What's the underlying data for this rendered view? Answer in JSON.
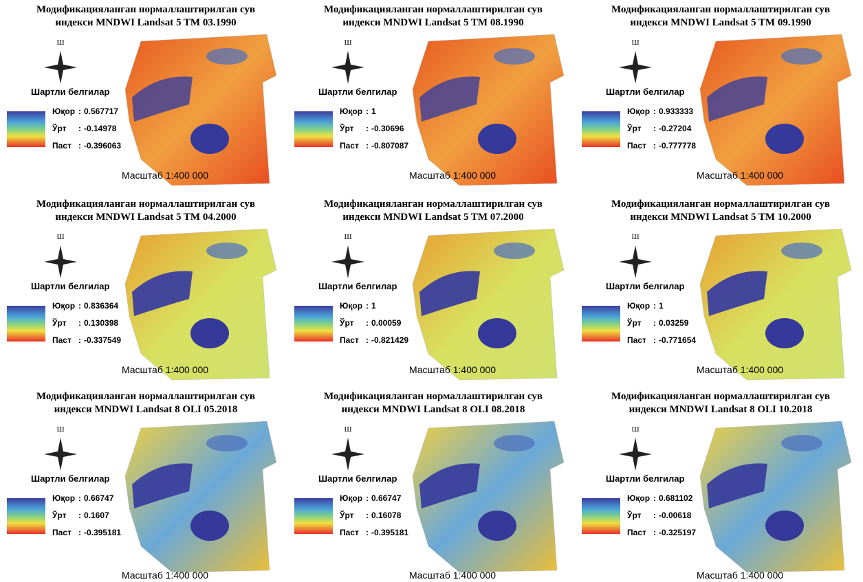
{
  "panels": [
    {
      "title_lines": [
        "Модификацияланган нормаллаштирилган сув",
        "индекси MNDWI Landsat 5 TM 03.1990"
      ],
      "north": "Ш",
      "legend_title": "Шартли белгилар",
      "legend": [
        {
          "label": "Юқор",
          "value": "0.567717"
        },
        {
          "label": "Ўрт",
          "value": "-0.14978"
        },
        {
          "label": "Паст",
          "value": "-0.396063"
        }
      ],
      "scale": "Масштаб 1:400 000"
    },
    {
      "title_lines": [
        "Модификацияланган нормаллаштирилган сув",
        "индекси MNDWI Landsat 5 TM 08.1990"
      ],
      "north": "Ш",
      "legend_title": "Шартли белгилар",
      "legend": [
        {
          "label": "Юқор",
          "value": "1"
        },
        {
          "label": "Ўрт",
          "value": "-0.30696"
        },
        {
          "label": "Паст",
          "value": "-0.807087"
        }
      ],
      "scale": "Масштаб 1:400 000"
    },
    {
      "title_lines": [
        "Модификацияланган нормаллаштирилган сув",
        "индекси MNDWI Landsat 5 TM 09.1990"
      ],
      "north": "Ш",
      "legend_title": "Шартли белгилар",
      "legend": [
        {
          "label": "Юқор",
          "value": "0.933333"
        },
        {
          "label": "Ўрт",
          "value": "-0.27204"
        },
        {
          "label": "Паст",
          "value": "-0.777778"
        }
      ],
      "scale": "Масштаб 1:400 000"
    },
    {
      "title_lines": [
        "Модификацияланган нормаллаштирилган сув",
        "индекси MNDWI Landsat 5 TM 04.2000"
      ],
      "north": "Ш",
      "legend_title": "Шартли белгилар",
      "legend": [
        {
          "label": "Юқор",
          "value": "0.836364"
        },
        {
          "label": "Ўрт",
          "value": "0.130398"
        },
        {
          "label": "Паст",
          "value": "-0.337549"
        }
      ],
      "scale": "Масштаб 1:400 000"
    },
    {
      "title_lines": [
        "Модификацияланган нормаллаштирилган сув",
        "индекси MNDWI Landsat 5 TM 07.2000"
      ],
      "north": "Ш",
      "legend_title": "Шартли белгилар",
      "legend": [
        {
          "label": "Юқор",
          "value": "1"
        },
        {
          "label": "Ўрт",
          "value": "0.00059"
        },
        {
          "label": "Паст",
          "value": "-0.821429"
        }
      ],
      "scale": "Масштаб 1:400 000"
    },
    {
      "title_lines": [
        "Модификацияланган нормаллаштирилган сув",
        "индекси MNDWI Landsat 5 TM 10.2000"
      ],
      "north": "Ш",
      "legend_title": "Шартли белгилар",
      "legend": [
        {
          "label": "Юқор",
          "value": "1"
        },
        {
          "label": "Ўрт",
          "value": "0.03259"
        },
        {
          "label": "Паст",
          "value": "-0.771654"
        }
      ],
      "scale": "Масштаб 1:400 000"
    },
    {
      "title_lines": [
        "Модификацияланган нормаллаштирилган сув",
        "индекси MNDWI Landsat 8 OLI 05.2018"
      ],
      "north": "Ш",
      "legend_title": "Шартли белгилар",
      "legend": [
        {
          "label": "Юқор",
          "value": "0.66747"
        },
        {
          "label": "Ўрт",
          "value": "0.1607"
        },
        {
          "label": "Паст",
          "value": "-0.395181"
        }
      ],
      "scale": "Масштаб 1:400 000"
    },
    {
      "title_lines": [
        "Модификацияланган нормаллаштирилган сув",
        "индекси MNDWI Landsat 8 OLI 08.2018"
      ],
      "north": "Ш",
      "legend_title": "Шартли белгилар",
      "legend": [
        {
          "label": "Юқор",
          "value": "0.66747"
        },
        {
          "label": "Ўрт",
          "value": "0.16078"
        },
        {
          "label": "Паст",
          "value": "-0.395181"
        }
      ],
      "scale": "Масштаб 1:400 000"
    },
    {
      "title_lines": [
        "Модификацияланган нормаллаштирилган сув",
        "индекси MNDWI Landsat 8 OLI 10.2018"
      ],
      "north": "Ш",
      "legend_title": "Шартли белгилар",
      "legend": [
        {
          "label": "Юқор",
          "value": "0.681102"
        },
        {
          "label": "Ўрт",
          "value": "-0.00618"
        },
        {
          "label": "Паст",
          "value": "-0.325197"
        }
      ],
      "scale": "Масштаб 1:400 000"
    }
  ]
}
